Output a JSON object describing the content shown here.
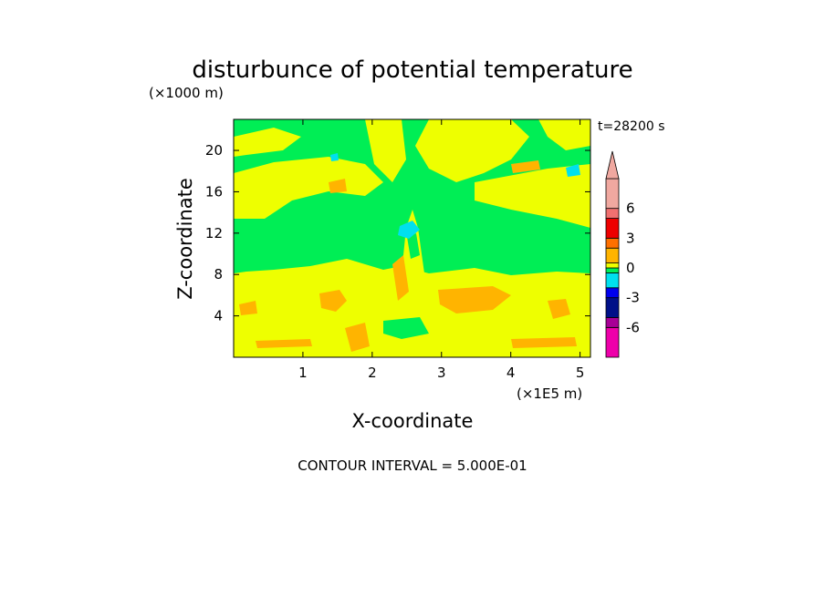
{
  "chart_data": {
    "type": "heatmap",
    "title": "disturbunce of potential temperature",
    "xlabel": "X-coordinate",
    "ylabel": "Z-coordinate",
    "x_unit": "(×1E5 m)",
    "y_unit": "(×1000 m)",
    "time_label": "t=28200 s",
    "footer": "CONTOUR INTERVAL = 5.000E-01",
    "xlim": [
      0,
      5.15
    ],
    "ylim": [
      0,
      23
    ],
    "x_ticks": [
      1,
      2,
      3,
      4,
      5
    ],
    "y_ticks": [
      4,
      8,
      12,
      16,
      20
    ],
    "colorbar": {
      "labels": [
        "6",
        "3",
        "0",
        "-3",
        "-6"
      ],
      "label_values": [
        6,
        3,
        0,
        -3,
        -6
      ],
      "bands": [
        {
          "from": -9,
          "to": -6,
          "color": "#ee00aa"
        },
        {
          "from": -6,
          "to": -5,
          "color": "#a80096"
        },
        {
          "from": -5,
          "to": -3,
          "color": "#001088"
        },
        {
          "from": -3,
          "to": -2,
          "color": "#0000ee"
        },
        {
          "from": -2,
          "to": -0.5,
          "color": "#00e0ee"
        },
        {
          "from": -0.5,
          "to": 0,
          "color": "#00ee55"
        },
        {
          "from": 0,
          "to": 0.5,
          "color": "#eeff00"
        },
        {
          "from": 0.5,
          "to": 2,
          "color": "#ffb400"
        },
        {
          "from": 2,
          "to": 3,
          "color": "#ff7000"
        },
        {
          "from": 3,
          "to": 5,
          "color": "#ee0000"
        },
        {
          "from": 5,
          "to": 6,
          "color": "#f07070"
        },
        {
          "from": 6,
          "to": 9,
          "color": "#f0a8a0"
        }
      ]
    },
    "field_colors": {
      "neutral_positive": "#eeff00",
      "neutral_negative": "#00ee55",
      "warm": "#ffb400",
      "cool": "#00e0ee"
    },
    "regions": [
      {
        "label": "upper band z 7.5-23",
        "value": -0.2
      },
      {
        "label": "lower band z 0-7.5",
        "value": 0.2
      },
      {
        "label": "orange patches z 0.8-1.5 & 4-6",
        "value": 0.8
      },
      {
        "label": "central plume x 2.2-2.6",
        "value": 1.0
      },
      {
        "label": "cyan spots near x 2.4 z 12.5 and x 4.8 z 17.5",
        "value": -1.0
      }
    ]
  }
}
